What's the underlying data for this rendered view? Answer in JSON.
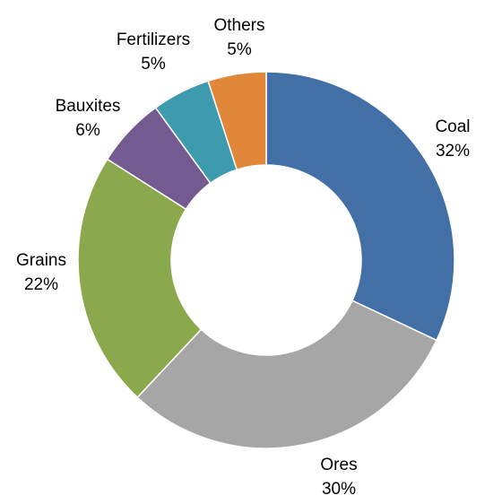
{
  "chart_data": {
    "type": "pie",
    "variant": "donut",
    "categories": [
      "Coal",
      "Ores",
      "Grains",
      "Bauxites",
      "Fertilizers",
      "Others"
    ],
    "values": [
      32,
      30,
      22,
      6,
      5,
      5
    ],
    "value_labels": [
      "32%",
      "30%",
      "22%",
      "6%",
      "5%",
      "5%"
    ],
    "colors": [
      "#4270A6",
      "#A6A6A6",
      "#8AA84C",
      "#735B91",
      "#3E9AAD",
      "#E0873A"
    ],
    "start_angle_deg": 0,
    "direction": "clockwise",
    "legend": "none",
    "title": ""
  }
}
